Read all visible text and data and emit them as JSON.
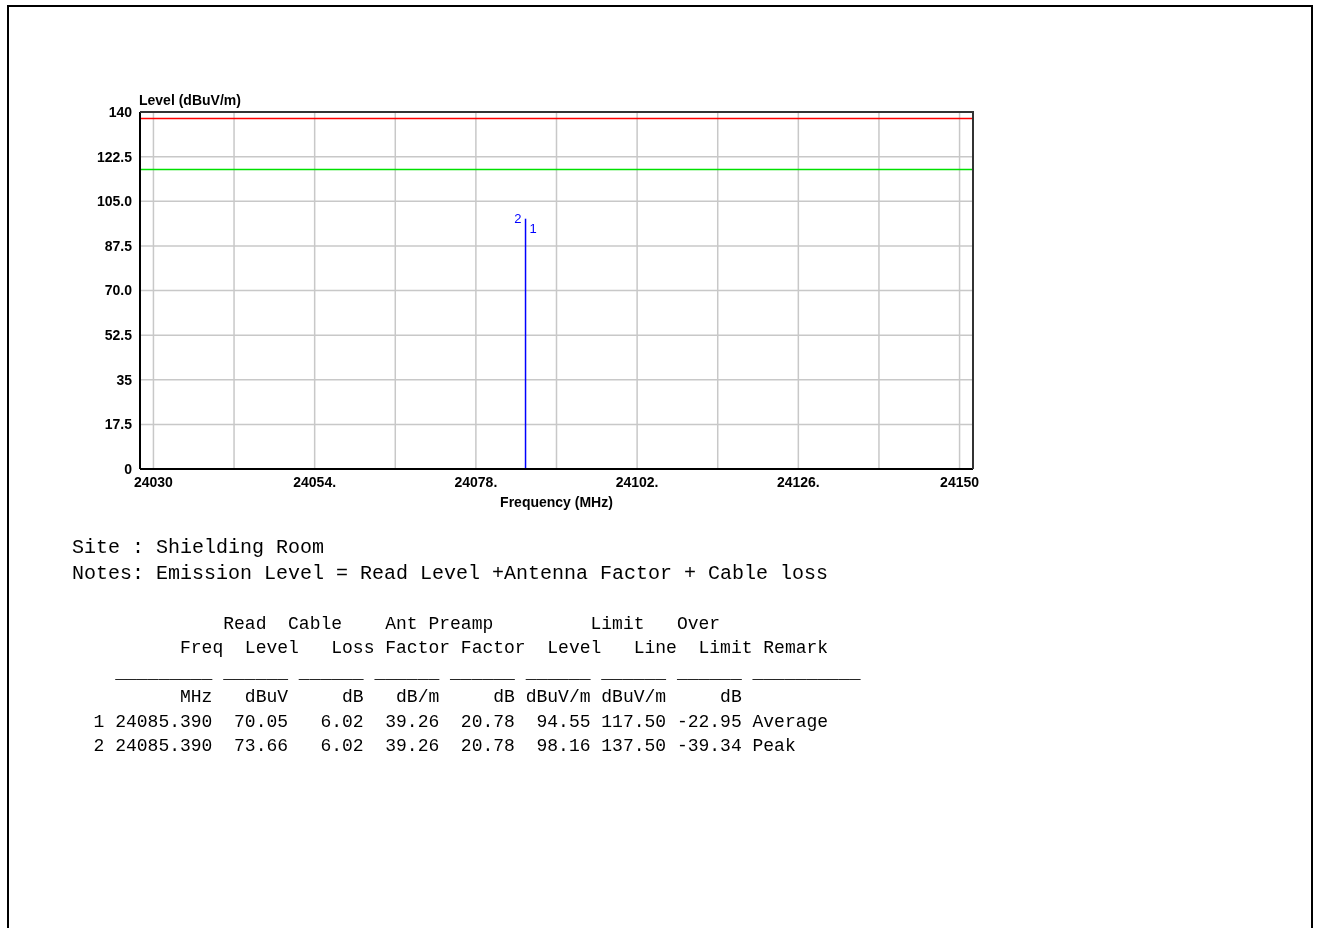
{
  "chart_data": {
    "type": "line",
    "xlabel": "Frequency (MHz)",
    "ylabel": "Level (dBuV/m)",
    "xlim": [
      24028,
      24152
    ],
    "xticks": [
      24030,
      {
        "value": 24042,
        "label": null
      },
      {
        "value": 24054,
        "label": "24054."
      },
      {
        "value": 24066,
        "label": null
      },
      {
        "value": 24078,
        "label": "24078."
      },
      {
        "value": 24090,
        "label": null
      },
      {
        "value": 24102,
        "label": "24102."
      },
      {
        "value": 24114,
        "label": null
      },
      {
        "value": 24126,
        "label": "24126."
      },
      {
        "value": 24138,
        "label": null
      },
      24150
    ],
    "ylim": [
      0,
      140
    ],
    "yticks": [
      0,
      17.5,
      35,
      52.5,
      {
        "value": 70,
        "label": "70.0"
      },
      87.5,
      {
        "value": 105,
        "label": "105.0"
      },
      122.5,
      140
    ],
    "grid": true,
    "series": [
      {
        "color": "#0000ff",
        "x": [
          24085.39,
          24085.39
        ],
        "values": [
          0,
          98.16
        ]
      }
    ],
    "ref_lines": [
      {
        "axis": "y",
        "value": 137.5,
        "color": "#ff0000"
      },
      {
        "axis": "y",
        "value": 117.5,
        "color": "#00e000"
      }
    ],
    "annotations": [
      "Site : Shielding Room",
      "Notes: Emission Level = Read Level +Antenna Factor + Cable loss",
      "              Read  Cable    Ant Preamp         Limit   Over",
      "          Freq  Level   Loss Factor Factor  Level   Line  Limit Remark",
      "    _________ ______ ______ ______ ______ ______ ______ ______ __________",
      "          MHz   dBuV     dB   dB/m     dB dBuV/m dBuV/m     dB",
      "  1 24085.390  70.05   6.02  39.26  20.78  94.55 117.50 -22.95 Average",
      "  2 24085.390  73.66   6.02  39.26  20.78  98.16 137.50 -39.34 Peak",
      {
        "text": "1",
        "x": 24085.39,
        "y": 94.55
      },
      {
        "text": "2",
        "x": 24085.39,
        "y": 98.16
      }
    ]
  }
}
